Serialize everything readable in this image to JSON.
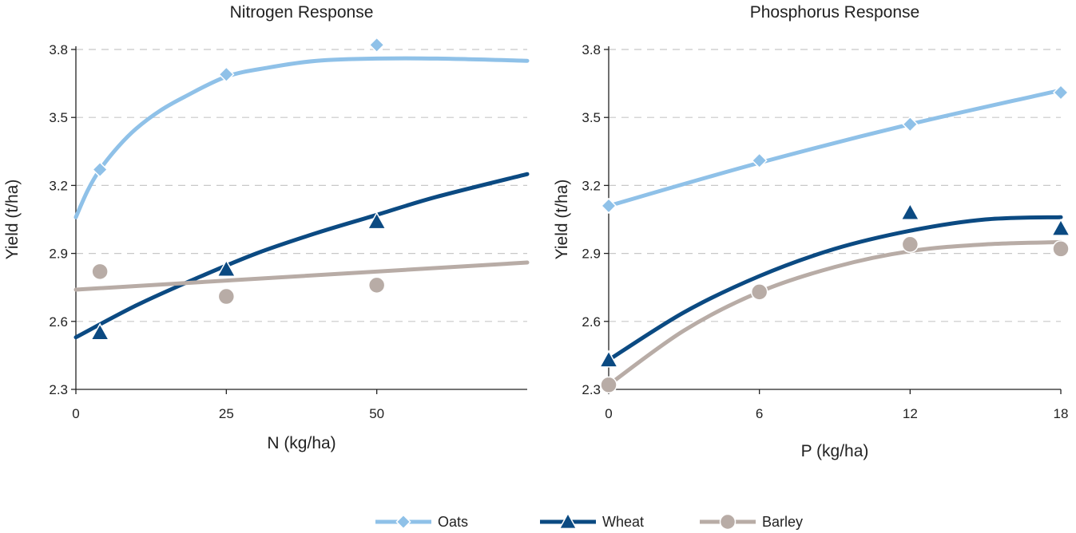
{
  "chart_data": [
    {
      "type": "scatter",
      "title": "Nitrogen Response",
      "xlabel": "N (kg/ha)",
      "ylabel": "Yield (t/ha)",
      "xlim": [
        0,
        75
      ],
      "ylim": [
        2.3,
        3.8
      ],
      "xticks": [
        "0",
        "25",
        "50"
      ],
      "xtick_values": [
        0,
        25,
        50
      ],
      "yticks": [
        "2.3",
        "2.6",
        "2.9",
        "3.2",
        "3.5",
        "3.8"
      ],
      "ytick_values": [
        2.3,
        2.6,
        2.9,
        3.2,
        3.5,
        3.8
      ],
      "grid": "horizontal dashed",
      "series": [
        {
          "name": "Oats",
          "marker": "diamond",
          "color": "#8fc1e8",
          "points": [
            [
              4,
              3.27
            ],
            [
              25,
              3.69
            ],
            [
              50,
              3.82
            ]
          ],
          "fit": [
            [
              0,
              3.06
            ],
            [
              2,
              3.18
            ],
            [
              4,
              3.27
            ],
            [
              7,
              3.37
            ],
            [
              10,
              3.45
            ],
            [
              14,
              3.53
            ],
            [
              18,
              3.59
            ],
            [
              25,
              3.68
            ],
            [
              32,
              3.72
            ],
            [
              40,
              3.75
            ],
            [
              50,
              3.76
            ],
            [
              60,
              3.76
            ],
            [
              75,
              3.75
            ]
          ]
        },
        {
          "name": "Wheat",
          "marker": "triangle",
          "color": "#0b4a82",
          "points": [
            [
              4,
              2.55
            ],
            [
              25,
              2.83
            ],
            [
              50,
              3.04
            ]
          ],
          "fit": [
            [
              0,
              2.53
            ],
            [
              10,
              2.67
            ],
            [
              20,
              2.79
            ],
            [
              30,
              2.9
            ],
            [
              40,
              2.99
            ],
            [
              50,
              3.07
            ],
            [
              60,
              3.15
            ],
            [
              75,
              3.25
            ]
          ]
        },
        {
          "name": "Barley",
          "marker": "circle",
          "color": "#b8aca6",
          "points": [
            [
              4,
              2.82
            ],
            [
              25,
              2.71
            ],
            [
              50,
              2.76
            ]
          ],
          "fit": [
            [
              0,
              2.74
            ],
            [
              75,
              2.86
            ]
          ]
        }
      ]
    },
    {
      "type": "scatter",
      "title": "Phosphorus Response",
      "xlabel": "P (kg/ha)",
      "ylabel": "Yield (t/ha)",
      "xlim": [
        0,
        18
      ],
      "ylim": [
        2.3,
        3.8
      ],
      "xticks": [
        "0",
        "6",
        "12",
        "18"
      ],
      "xtick_values": [
        0,
        6,
        12,
        18
      ],
      "yticks": [
        "2.3",
        "2.6",
        "2.9",
        "3.2",
        "3.5",
        "3.8"
      ],
      "ytick_values": [
        2.3,
        2.6,
        2.9,
        3.2,
        3.5,
        3.8
      ],
      "grid": "horizontal dashed",
      "series": [
        {
          "name": "Oats",
          "marker": "diamond",
          "color": "#8fc1e8",
          "points": [
            [
              0,
              3.11
            ],
            [
              6,
              3.31
            ],
            [
              12,
              3.47
            ],
            [
              18,
              3.61
            ]
          ],
          "fit": [
            [
              0,
              3.11
            ],
            [
              6,
              3.3
            ],
            [
              12,
              3.47
            ],
            [
              18,
              3.62
            ]
          ]
        },
        {
          "name": "Wheat",
          "marker": "triangle",
          "color": "#0b4a82",
          "points": [
            [
              0,
              2.43
            ],
            [
              12,
              3.08
            ],
            [
              18,
              3.01
            ]
          ],
          "fit": [
            [
              0,
              2.43
            ],
            [
              3,
              2.64
            ],
            [
              6,
              2.8
            ],
            [
              9,
              2.92
            ],
            [
              12,
              3.0
            ],
            [
              15,
              3.05
            ],
            [
              18,
              3.06
            ]
          ]
        },
        {
          "name": "Barley",
          "marker": "circle",
          "color": "#b8aca6",
          "points": [
            [
              0,
              2.32
            ],
            [
              6,
              2.73
            ],
            [
              12,
              2.94
            ],
            [
              18,
              2.92
            ]
          ],
          "fit": [
            [
              0,
              2.32
            ],
            [
              3,
              2.56
            ],
            [
              6,
              2.73
            ],
            [
              9,
              2.84
            ],
            [
              12,
              2.91
            ],
            [
              15,
              2.94
            ],
            [
              18,
              2.95
            ]
          ]
        }
      ]
    }
  ],
  "legend": {
    "position": "bottom-center",
    "items": [
      {
        "label": "Oats",
        "marker": "diamond",
        "color": "#8fc1e8"
      },
      {
        "label": "Wheat",
        "marker": "triangle",
        "color": "#0b4a82"
      },
      {
        "label": "Barley",
        "marker": "circle",
        "color": "#b8aca6"
      }
    ]
  }
}
